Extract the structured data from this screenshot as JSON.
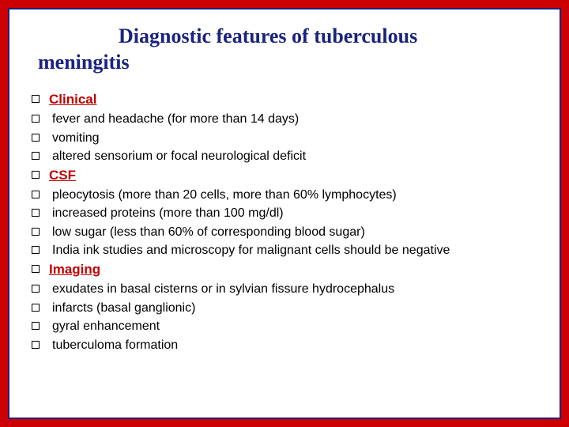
{
  "title_line1": "Diagnostic features of  tuberculous",
  "title_line2": "meningitis",
  "colors": {
    "outer_border": "#cc0000",
    "inner_border": "#1a237e",
    "background": "#ffffff",
    "title_color": "#1a237e",
    "heading_color": "#c00000",
    "body_color": "#000000",
    "bullet_border": "#000000"
  },
  "typography": {
    "title_fontsize": 26,
    "heading_fontsize": 17,
    "body_fontsize": 16,
    "title_family": "Times New Roman",
    "heading_family": "Verdana",
    "body_family": "Lucida Sans Unicode"
  },
  "sections": [
    {
      "heading": "Clinical",
      "items": [
        "fever and headache (for more than 14  days)",
        "vomiting",
        "altered sensorium or focal neurological deficit"
      ]
    },
    {
      "heading": "CSF",
      "items": [
        "pleocytosis (more than 20 cells, more than 60% lymphocytes)",
        "increased proteins (more than 100 mg/dl)",
        "low sugar (less than 60% of corresponding blood sugar)",
        "India ink studies and microscopy for malignant cells should be negative"
      ]
    },
    {
      "heading": "Imaging",
      "items": [
        "exudates in basal cisterns or in sylvian fissure hydrocephalus",
        "infarcts (basal ganglionic)",
        "gyral enhancement",
        "tuberculoma formation"
      ]
    }
  ]
}
